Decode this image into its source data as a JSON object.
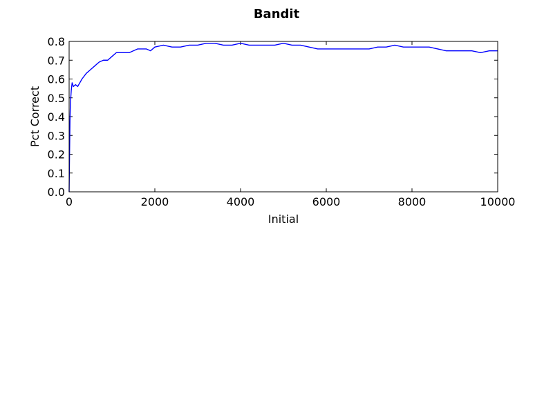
{
  "chart_data": {
    "type": "line",
    "title": "Bandit",
    "xlabel": "Initial",
    "ylabel": "Pct Correct",
    "xlim": [
      0,
      10000
    ],
    "ylim": [
      0,
      0.8
    ],
    "xticks": [
      "0",
      "2000",
      "4000",
      "6000",
      "8000",
      "10000"
    ],
    "yticks": [
      "0.0",
      "0.1",
      "0.2",
      "0.3",
      "0.4",
      "0.5",
      "0.6",
      "0.7",
      "0.8"
    ],
    "grid": false,
    "legend": "none",
    "series": [
      {
        "color": "#0000ff",
        "x": [
          0,
          10,
          20,
          30,
          50,
          70,
          100,
          150,
          200,
          250,
          300,
          400,
          500,
          600,
          700,
          800,
          900,
          1000,
          1100,
          1200,
          1300,
          1400,
          1500,
          1600,
          1700,
          1800,
          1900,
          2000,
          2200,
          2400,
          2600,
          2800,
          3000,
          3200,
          3400,
          3600,
          3800,
          4000,
          4200,
          4400,
          4600,
          4800,
          5000,
          5200,
          5400,
          5600,
          5800,
          6000,
          6200,
          6400,
          6600,
          6800,
          7000,
          7200,
          7400,
          7600,
          7800,
          8000,
          8200,
          8400,
          8600,
          8800,
          9000,
          9200,
          9400,
          9600,
          9800,
          10000
        ],
        "y": [
          0.0,
          0.2,
          0.38,
          0.47,
          0.54,
          0.58,
          0.56,
          0.57,
          0.56,
          0.58,
          0.6,
          0.63,
          0.65,
          0.67,
          0.69,
          0.7,
          0.7,
          0.72,
          0.74,
          0.74,
          0.74,
          0.74,
          0.75,
          0.76,
          0.76,
          0.76,
          0.75,
          0.77,
          0.78,
          0.77,
          0.77,
          0.78,
          0.78,
          0.79,
          0.79,
          0.78,
          0.78,
          0.79,
          0.78,
          0.78,
          0.78,
          0.78,
          0.79,
          0.78,
          0.78,
          0.77,
          0.76,
          0.76,
          0.76,
          0.76,
          0.76,
          0.76,
          0.76,
          0.77,
          0.77,
          0.78,
          0.77,
          0.77,
          0.77,
          0.77,
          0.76,
          0.75,
          0.75,
          0.75,
          0.75,
          0.74,
          0.75,
          0.75
        ]
      }
    ]
  }
}
